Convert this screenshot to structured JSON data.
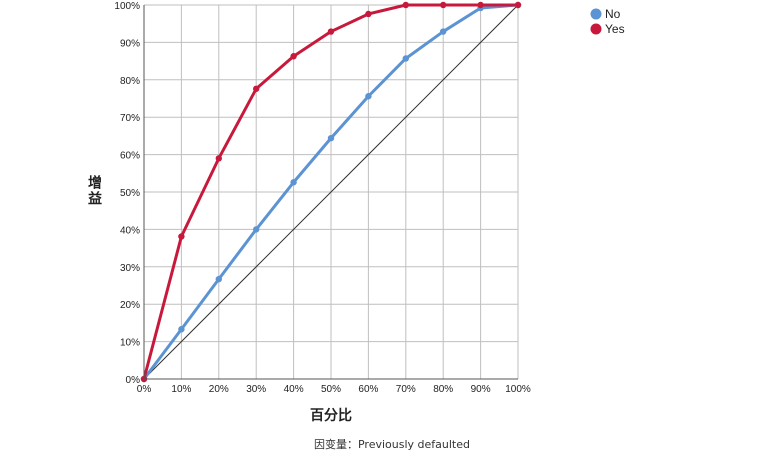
{
  "chart_data": {
    "type": "line",
    "title": "",
    "xlabel": "百分比",
    "ylabel": "增益",
    "footnote": "因变量：Previously defaulted",
    "x_tick_labels": [
      "0%",
      "10%",
      "20%",
      "30%",
      "40%",
      "50%",
      "60%",
      "70%",
      "80%",
      "90%",
      "100%"
    ],
    "y_tick_labels": [
      "0%",
      "10%",
      "20%",
      "30%",
      "40%",
      "50%",
      "60%",
      "70%",
      "80%",
      "90%",
      "100%"
    ],
    "xlim": [
      0,
      100
    ],
    "ylim": [
      0,
      100
    ],
    "grid": true,
    "legend_position": "top-right",
    "x": [
      0,
      10,
      20,
      30,
      40,
      50,
      60,
      70,
      80,
      90,
      100
    ],
    "series": [
      {
        "name": "No",
        "color": "#5b93d3",
        "values": [
          0,
          13.3,
          26.7,
          40,
          52.6,
          64.4,
          75.6,
          85.7,
          92.9,
          99.2,
          100
        ]
      },
      {
        "name": "Yes",
        "color": "#c8193c",
        "values": [
          0,
          38.1,
          59.0,
          77.6,
          86.3,
          92.9,
          97.6,
          100,
          100,
          100,
          100
        ]
      }
    ],
    "reference_line": {
      "color": "#333333",
      "from": [
        0,
        0
      ],
      "to": [
        100,
        100
      ]
    },
    "grid_color": "#bfbfbf",
    "axis_color": "#555555"
  }
}
